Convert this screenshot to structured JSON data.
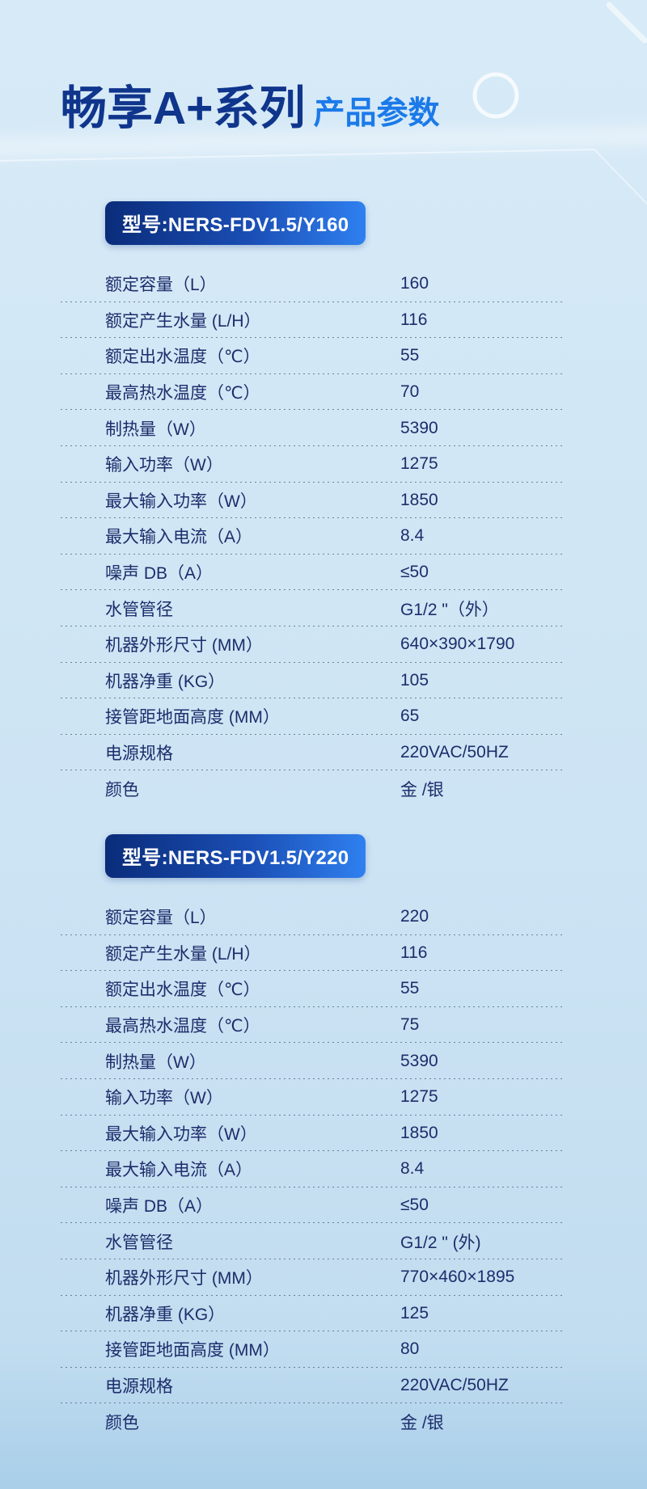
{
  "page": {
    "title_main": "畅享A+系列",
    "title_sub": "产品参数"
  },
  "colors": {
    "bg_top": "#d7eaf7",
    "bg_mid": "#cde4f4",
    "bg_bottom": "#a9cfe9",
    "title_primary": "#0f358c",
    "title_accent": "#1b7ae9",
    "badge_start": "#0a2c7a",
    "badge_end": "#2f80f0",
    "badge_text": "#ffffff",
    "text_dark": "#1d2d6b",
    "divider": "#4e6a82"
  },
  "sections": [
    {
      "model_label": "型号:NERS-FDV1.5/Y160",
      "rows": [
        {
          "label": "额定容量（L）",
          "value": "160"
        },
        {
          "label": "额定产生水量 (L/H）",
          "value": "116"
        },
        {
          "label": "额定出水温度（℃）",
          "value": "55"
        },
        {
          "label": "最高热水温度（℃）",
          "value": "70"
        },
        {
          "label": "制热量（W）",
          "value": "5390"
        },
        {
          "label": "输入功率（W）",
          "value": "1275"
        },
        {
          "label": "最大输入功率（W）",
          "value": "1850"
        },
        {
          "label": "最大输入电流（A）",
          "value": "8.4"
        },
        {
          "label": "噪声 DB（A）",
          "value": "≤50"
        },
        {
          "label": "水管管径",
          "value": "G1/2 \"（外）"
        },
        {
          "label": "机器外形尺寸 (MM）",
          "value": "640×390×1790"
        },
        {
          "label": "机器净重 (KG）",
          "value": "105"
        },
        {
          "label": "接管距地面高度 (MM）",
          "value": "65"
        },
        {
          "label": "电源规格",
          "value": "220VAC/50HZ"
        },
        {
          "label": "颜色",
          "value": "金 /银"
        }
      ]
    },
    {
      "model_label": "型号:NERS-FDV1.5/Y220",
      "rows": [
        {
          "label": "额定容量（L）",
          "value": "220"
        },
        {
          "label": "额定产生水量 (L/H）",
          "value": "116"
        },
        {
          "label": "额定出水温度（℃）",
          "value": "55"
        },
        {
          "label": "最高热水温度（℃）",
          "value": "75"
        },
        {
          "label": "制热量（W）",
          "value": "5390"
        },
        {
          "label": "输入功率（W）",
          "value": "1275"
        },
        {
          "label": "最大输入功率（W）",
          "value": "1850"
        },
        {
          "label": "最大输入电流（A）",
          "value": "8.4"
        },
        {
          "label": "噪声 DB（A）",
          "value": "≤50"
        },
        {
          "label": "水管管径",
          "value": "G1/2 \" (外)"
        },
        {
          "label": "机器外形尺寸 (MM）",
          "value": "770×460×1895"
        },
        {
          "label": "机器净重 (KG）",
          "value": "125"
        },
        {
          "label": "接管距地面高度 (MM）",
          "value": "80"
        },
        {
          "label": "电源规格",
          "value": "220VAC/50HZ"
        },
        {
          "label": "颜色",
          "value": "金 /银"
        }
      ]
    }
  ]
}
